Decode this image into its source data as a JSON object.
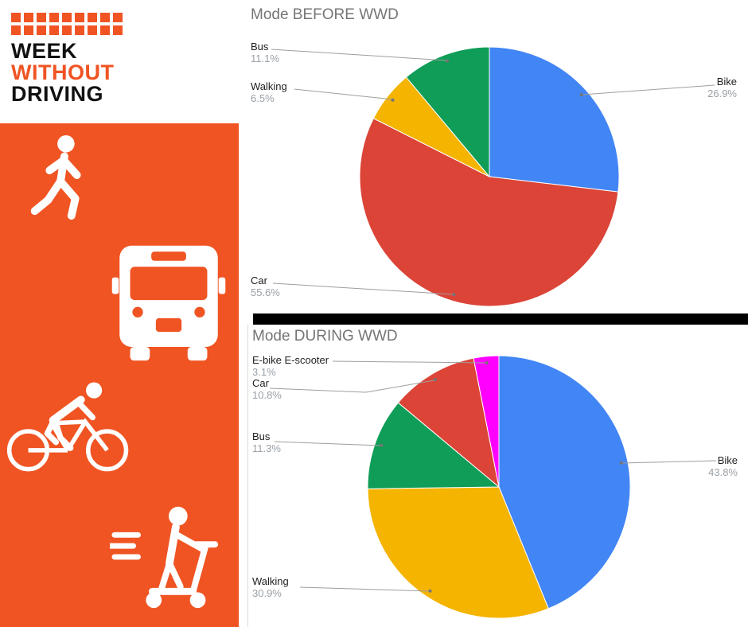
{
  "brand": {
    "name_lines": [
      "WEEK",
      "WITHOUT",
      "DRIVING"
    ],
    "orange": "#F05423"
  },
  "sidebar_icons": [
    "walking-person-icon",
    "bus-icon",
    "cyclist-icon",
    "kick-scooter-icon"
  ],
  "chart_data": [
    {
      "type": "pie",
      "title": "Mode BEFORE WWD",
      "labels": [
        "Bike",
        "Car",
        "Walking",
        "Bus"
      ],
      "values": [
        26.9,
        55.6,
        6.5,
        11.1
      ],
      "pcts": [
        "26.9%",
        "55.6%",
        "6.5%",
        "11.1%"
      ],
      "colors": [
        "#4285F4",
        "#DB4437",
        "#F4B400",
        "#0F9D58"
      ],
      "start_angle_deg": 0,
      "direction": "clockwise",
      "legend": "labeled",
      "background": "#FFFFFF"
    },
    {
      "type": "pie",
      "title": "Mode DURING WWD",
      "labels": [
        "Bike",
        "Walking",
        "Bus",
        "Car",
        "E-bike E-scooter"
      ],
      "values": [
        43.8,
        30.9,
        11.3,
        10.8,
        3.1
      ],
      "pcts": [
        "43.8%",
        "30.9%",
        "11.3%",
        "10.8%",
        "3.1%"
      ],
      "colors": [
        "#4285F4",
        "#F4B400",
        "#0F9D58",
        "#DB4437",
        "#FF00FF"
      ],
      "start_angle_deg": 0,
      "direction": "clockwise",
      "legend": "labeled",
      "background": "#FFFFFF"
    }
  ]
}
